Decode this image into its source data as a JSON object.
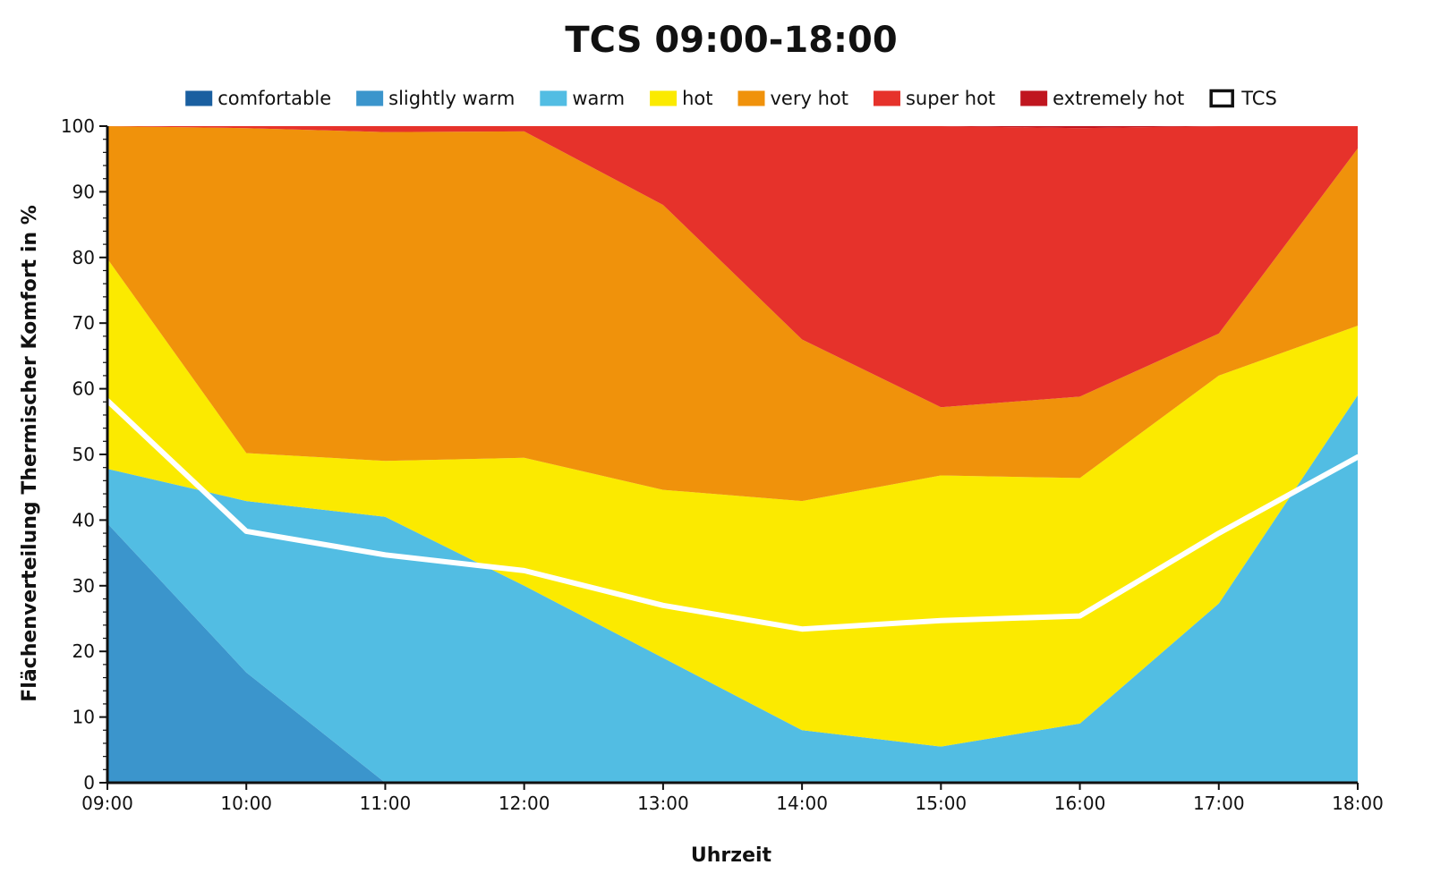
{
  "chart_data": {
    "type": "area",
    "title": "TCS 09:00-18:00",
    "xlabel": "Uhrzeit",
    "ylabel": "Flächenverteilung Thermischer Komfort in %",
    "ylim": [
      0,
      100
    ],
    "yticks": [
      "0",
      "10",
      "20",
      "30",
      "40",
      "50",
      "60",
      "70",
      "80",
      "90",
      "100"
    ],
    "categories": [
      "09:00",
      "10:00",
      "11:00",
      "12:00",
      "13:00",
      "14:00",
      "15:00",
      "16:00",
      "17:00",
      "18:00"
    ],
    "stacked": true,
    "legend_position": "top",
    "series": [
      {
        "name": "comfortable",
        "color": "#1a5fa0",
        "values": [
          0,
          0,
          0,
          0,
          0,
          0,
          0,
          0,
          0,
          0
        ]
      },
      {
        "name": "slightly warm",
        "color": "#3b95cc",
        "values": [
          39.5,
          16.8,
          0,
          0,
          0,
          0,
          0,
          0,
          0,
          0
        ]
      },
      {
        "name": "warm",
        "color": "#52bde3",
        "values": [
          8.3,
          26.1,
          40.5,
          30,
          19,
          8,
          5.5,
          9,
          27.3,
          59
        ]
      },
      {
        "name": "hot",
        "color": "#fbea00",
        "values": [
          32,
          7.3,
          8.5,
          19.5,
          25.6,
          34.9,
          41.3,
          37.4,
          34.7,
          10.6
        ]
      },
      {
        "name": "very hot",
        "color": "#f0920b",
        "values": [
          20.2,
          49.5,
          50.1,
          49.7,
          43.4,
          24.6,
          10.4,
          12.4,
          6.4,
          27
        ]
      },
      {
        "name": "super hot",
        "color": "#e6322b",
        "values": [
          0,
          0.3,
          0.9,
          0.8,
          12,
          32.5,
          42.8,
          40.9,
          31.6,
          3.4
        ]
      },
      {
        "name": "extremely hot",
        "color": "#c0161f",
        "values": [
          0,
          0,
          0,
          0,
          0,
          0,
          0,
          0.3,
          0,
          0
        ]
      }
    ],
    "line": {
      "name": "TCS",
      "color": "#ffffff",
      "values": [
        58.2,
        38.3,
        34.7,
        32.3,
        27,
        23.4,
        24.7,
        25.4,
        38,
        49.6
      ]
    },
    "grid": false
  }
}
